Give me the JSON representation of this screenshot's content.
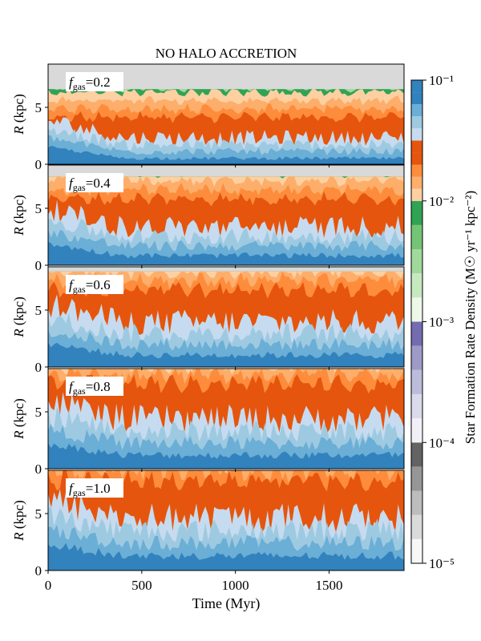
{
  "chart_data": {
    "type": "heatmap",
    "title": "NO HALO ACCRETION",
    "xlabel": "Time (Myr)",
    "ylabel": "R (kpc)",
    "xlim": [
      0,
      1900
    ],
    "ylim": [
      0,
      8.8
    ],
    "x_ticks": [
      "0",
      "500",
      "1000",
      "1500"
    ],
    "x_tick_values": [
      0,
      500,
      1000,
      1500
    ],
    "y_ticks": [
      "0",
      "5"
    ],
    "y_tick_values": [
      0,
      5
    ],
    "colorbar": {
      "label": "Star Formation Rate Density (M☉ yr⁻¹ kpc⁻²)",
      "scale": "log",
      "range": [
        1e-05,
        0.1
      ],
      "tick_labels": [
        "10⁻⁵",
        "10⁻⁴",
        "10⁻³",
        "10⁻²",
        "10⁻¹"
      ],
      "tick_values": [
        1e-05,
        0.0001,
        0.001,
        0.01,
        0.1
      ]
    },
    "panels": [
      {
        "label": "f_gas=0.2",
        "f_gas": "0.2"
      },
      {
        "label": "f_gas=0.4",
        "f_gas": "0.4"
      },
      {
        "label": "f_gas=0.6",
        "f_gas": "0.6"
      },
      {
        "label": "f_gas=0.8",
        "f_gas": "0.8"
      },
      {
        "label": "f_gas=1.0",
        "f_gas": "1.0"
      }
    ],
    "edge_radius_kpc": [
      6.0,
      7.2,
      7.8,
      8.2,
      8.4
    ],
    "inner_boundary_kpc": [
      2.2,
      3.6,
      4.4,
      5.0,
      5.4
    ],
    "colormap_bands": [
      {
        "decade": "1e-5 to 1e-4",
        "colors": [
          "#f7f7f7",
          "#dadada",
          "#bdbdbd",
          "#969696",
          "#636363"
        ]
      },
      {
        "decade": "1e-4 to 1e-3",
        "colors": [
          "#f2f0f7",
          "#dadaeb",
          "#bcbddc",
          "#9e9ac8",
          "#756bb1"
        ]
      },
      {
        "decade": "1e-3 to 1e-2",
        "colors": [
          "#edf8e9",
          "#c7e9c0",
          "#a1d99b",
          "#74c476",
          "#31a354"
        ]
      },
      {
        "decade": "1e-2 to 1e-1 (orange)",
        "colors": [
          "#fdd0a2",
          "#fdae6b",
          "#fd8d3c",
          "#e6550d"
        ]
      },
      {
        "decade": "1e-2 to 1e-1 (blue)",
        "colors": [
          "#c6dbef",
          "#9ecae1",
          "#6baed6",
          "#3182bd"
        ]
      }
    ],
    "background_color": "#d9d9d9"
  }
}
